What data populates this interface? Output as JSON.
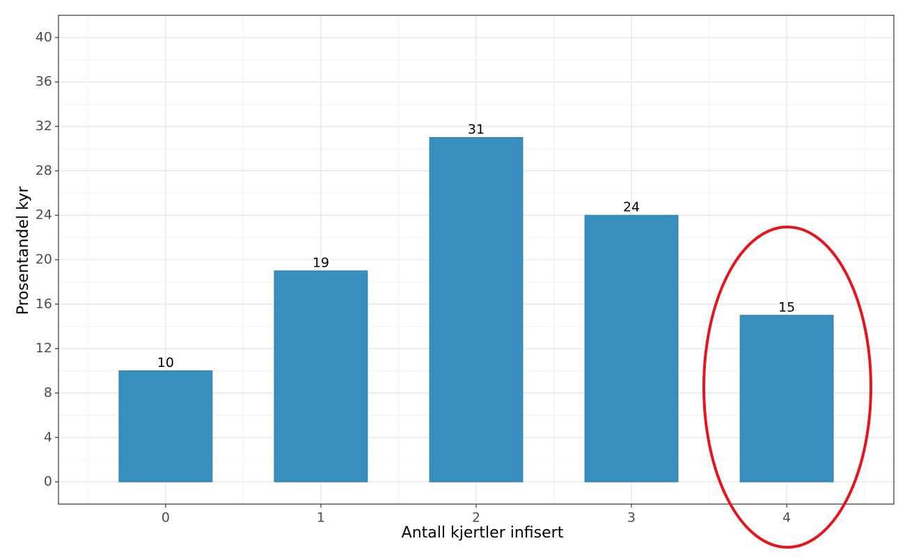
{
  "chart_data": {
    "type": "bar",
    "x_label": "Antall kjertler infisert",
    "y_label": "Prosentandel kyr",
    "categories": [
      "0",
      "1",
      "2",
      "3",
      "4"
    ],
    "values": [
      10,
      19,
      31,
      24,
      15
    ],
    "color": "#388ebc",
    "ylim": [
      -2,
      42
    ],
    "yticks": [
      0,
      4,
      8,
      12,
      16,
      20,
      24,
      28,
      32,
      36,
      40
    ],
    "grid": true
  }
}
